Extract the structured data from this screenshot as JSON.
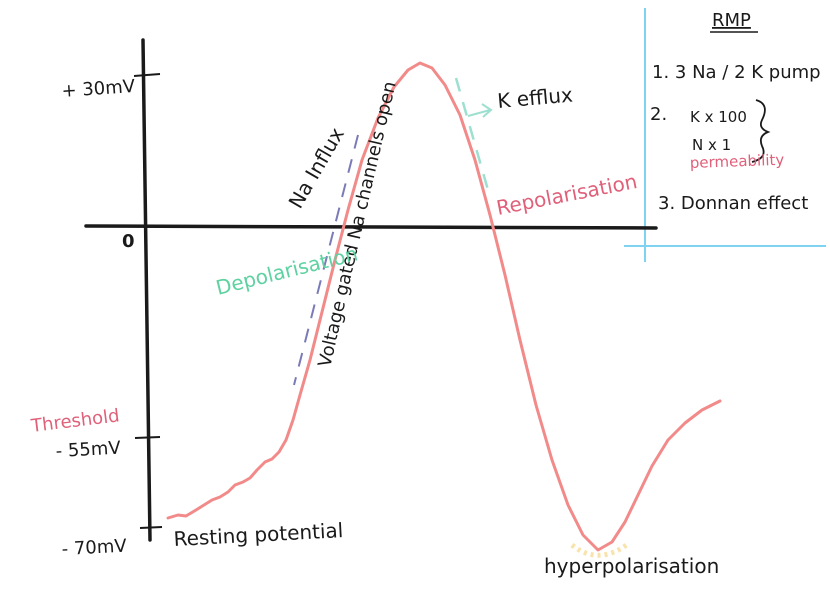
{
  "axis": {
    "origin_label": "0",
    "y_ticks": [
      "+ 30mV",
      "- 55mV",
      "- 70mV"
    ]
  },
  "annotations": {
    "na_influx": "Na Influx",
    "voltage_gated": "Voltage gated Na channels open",
    "k_efflux": "K efflux",
    "depolarisation": "Depolarisation",
    "repolarisation": "Repolarisation",
    "threshold": "Threshold",
    "resting_potential": "Resting potential",
    "hyperpolarisation": "hyperpolarisation"
  },
  "rmp_box": {
    "title": "RMP",
    "item1": "1. 3 Na / 2 K pump",
    "item2_label": "2.",
    "item2_k": "K x 100",
    "item2_na": "N x 1",
    "item2_note": "permeability",
    "item3": "3. Donnan effect"
  },
  "colors": {
    "ink": "#1a1a1a",
    "curve": "#f28a8a",
    "accent_pink": "#e0607a",
    "accent_green": "#5ed2a0",
    "divider": "#7fd3f0",
    "dash_blue": "#7a7ab8",
    "dash_teal": "#9ee0cf",
    "glow": "#f7d78a"
  }
}
